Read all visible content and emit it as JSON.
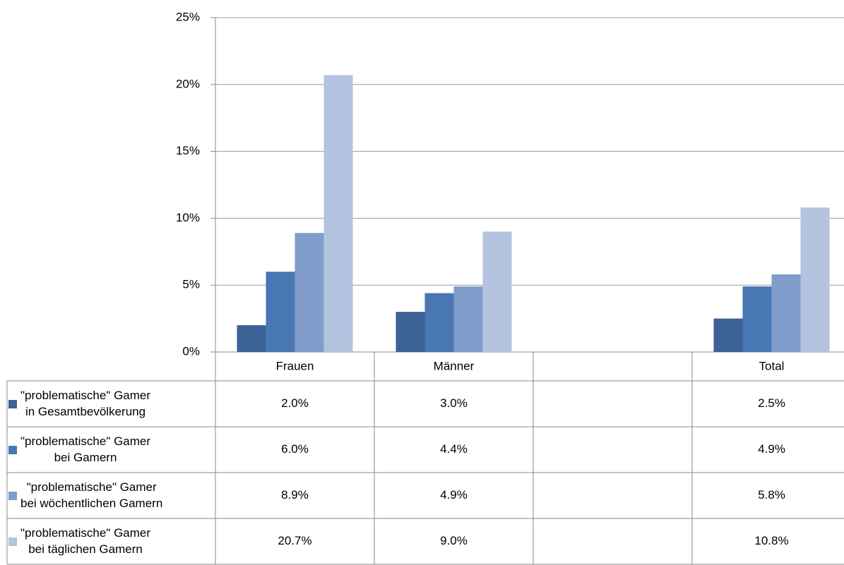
{
  "chart_data": {
    "type": "bar",
    "categories": [
      "Frauen",
      "Männer",
      null,
      "Total"
    ],
    "series": [
      {
        "name": "\"problematische\" Gamer\nin Gesamtbevölkerung",
        "color": "#3c6296",
        "values": [
          2.0,
          3.0,
          null,
          2.5
        ],
        "value_labels": [
          "2.0%",
          "3.0%",
          null,
          "2.5%"
        ]
      },
      {
        "name": "\"problematische\" Gamer\nbei Gamern",
        "color": "#4877b3",
        "values": [
          6.0,
          4.4,
          null,
          4.9
        ],
        "value_labels": [
          "6.0%",
          "4.4%",
          null,
          "4.9%"
        ]
      },
      {
        "name": "\"problematische\" Gamer\nbei wöchentlichen Gamern",
        "color": "#7f9ccb",
        "values": [
          8.9,
          4.9,
          null,
          5.8
        ],
        "value_labels": [
          "8.9%",
          "4.9%",
          null,
          "5.8%"
        ]
      },
      {
        "name": "\"problematische\" Gamer\nbei täglichen Gamern",
        "color": "#b4c3e0",
        "values": [
          20.7,
          9.0,
          null,
          10.8
        ],
        "value_labels": [
          "20.7%",
          "9.0%",
          null,
          "10.8%"
        ]
      }
    ],
    "ylim": [
      0,
      25
    ],
    "yticks": [
      {
        "value": 0,
        "label": "0%"
      },
      {
        "value": 5,
        "label": "5%"
      },
      {
        "value": 10,
        "label": "10%"
      },
      {
        "value": 15,
        "label": "15%"
      },
      {
        "value": 20,
        "label": "20%"
      },
      {
        "value": 25,
        "label": "25%"
      }
    ],
    "grid": true
  }
}
